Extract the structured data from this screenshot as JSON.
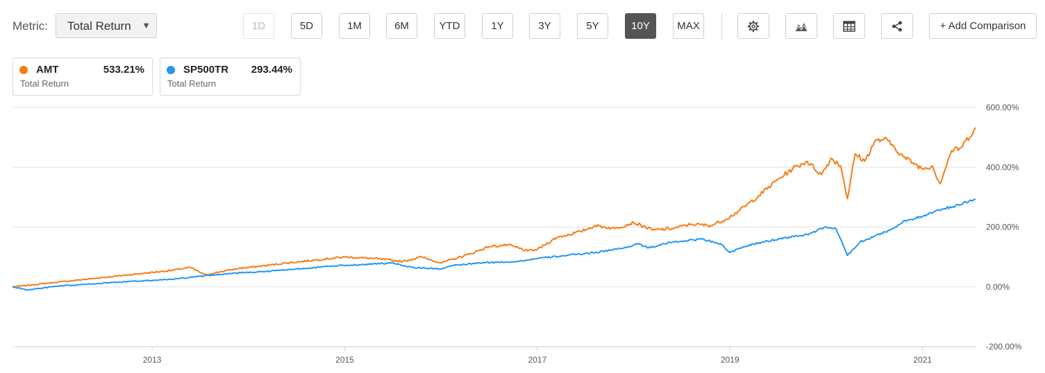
{
  "toolbar": {
    "metric_label": "Metric:",
    "metric_value": "Total Return",
    "ranges": [
      {
        "label": "1D",
        "state": "disabled"
      },
      {
        "label": "5D",
        "state": "normal"
      },
      {
        "label": "1M",
        "state": "normal"
      },
      {
        "label": "6M",
        "state": "normal"
      },
      {
        "label": "YTD",
        "state": "normal"
      },
      {
        "label": "1Y",
        "state": "normal"
      },
      {
        "label": "3Y",
        "state": "normal"
      },
      {
        "label": "5Y",
        "state": "normal"
      },
      {
        "label": "10Y",
        "state": "active"
      },
      {
        "label": "MAX",
        "state": "normal"
      }
    ],
    "icons": [
      "gear-icon",
      "chart-type-icon",
      "table-icon",
      "share-icon"
    ],
    "add_comparison_label": "+ Add Comparison"
  },
  "legend": [
    {
      "symbol": "AMT",
      "value": "533.21%",
      "sub": "Total Return",
      "color": "#f57c14"
    },
    {
      "symbol": "SP500TR",
      "value": "293.44%",
      "sub": "Total Return",
      "color": "#2196f3"
    }
  ],
  "chart_data": {
    "type": "line",
    "xlabel": "",
    "ylabel": "",
    "ylim": [
      -200,
      600
    ],
    "xlim": [
      2011.55,
      2021.55
    ],
    "y_ticks": [
      600,
      400,
      200,
      0,
      -200
    ],
    "y_tick_labels": [
      "600.00%",
      "400.00%",
      "200.00%",
      "0.00%",
      "-200.00%"
    ],
    "x_ticks": [
      2013,
      2015,
      2017,
      2019,
      2021
    ],
    "x_tick_labels": [
      "2013",
      "2015",
      "2017",
      "2019",
      "2021"
    ],
    "grid": true,
    "y_axis_position": "right",
    "series": [
      {
        "name": "AMT",
        "color": "#f57c14",
        "x": [
          2011.55,
          2011.7,
          2012.0,
          2012.3,
          2012.6,
          2012.9,
          2013.2,
          2013.4,
          2013.55,
          2013.7,
          2013.9,
          2014.1,
          2014.4,
          2014.7,
          2015.0,
          2015.3,
          2015.6,
          2015.8,
          2016.0,
          2016.3,
          2016.5,
          2016.7,
          2016.9,
          2017.0,
          2017.2,
          2017.45,
          2017.6,
          2017.8,
          2018.0,
          2018.2,
          2018.4,
          2018.6,
          2018.8,
          2018.95,
          2019.1,
          2019.3,
          2019.5,
          2019.65,
          2019.8,
          2019.95,
          2020.05,
          2020.15,
          2020.22,
          2020.3,
          2020.4,
          2020.5,
          2020.6,
          2020.7,
          2020.8,
          2020.9,
          2021.0,
          2021.1,
          2021.18,
          2021.3,
          2021.4,
          2021.55
        ],
        "values": [
          0,
          5,
          15,
          25,
          35,
          45,
          55,
          65,
          40,
          50,
          62,
          68,
          80,
          90,
          100,
          95,
          85,
          100,
          80,
          110,
          135,
          140,
          120,
          125,
          165,
          185,
          205,
          195,
          215,
          190,
          195,
          210,
          205,
          225,
          255,
          305,
          360,
          395,
          420,
          375,
          430,
          405,
          295,
          445,
          420,
          485,
          495,
          470,
          435,
          415,
          395,
          405,
          345,
          455,
          465,
          533
        ]
      },
      {
        "name": "SP500TR",
        "color": "#2196f3",
        "x": [
          2011.55,
          2011.7,
          2011.85,
          2012.0,
          2012.3,
          2012.6,
          2012.9,
          2013.2,
          2013.5,
          2013.8,
          2014.1,
          2014.5,
          2014.9,
          2015.2,
          2015.5,
          2015.7,
          2016.0,
          2016.1,
          2016.4,
          2016.8,
          2017.0,
          2017.3,
          2017.6,
          2017.9,
          2018.05,
          2018.15,
          2018.4,
          2018.7,
          2018.9,
          2019.0,
          2019.2,
          2019.5,
          2019.8,
          2020.0,
          2020.1,
          2020.22,
          2020.35,
          2020.5,
          2020.7,
          2020.8,
          2021.0,
          2021.2,
          2021.4,
          2021.5,
          2021.55
        ],
        "values": [
          0,
          -10,
          -5,
          2,
          8,
          15,
          20,
          25,
          35,
          45,
          50,
          60,
          70,
          75,
          80,
          65,
          60,
          70,
          80,
          85,
          95,
          105,
          115,
          130,
          145,
          130,
          150,
          160,
          145,
          115,
          140,
          160,
          175,
          200,
          195,
          105,
          150,
          170,
          195,
          220,
          235,
          260,
          275,
          290,
          293
        ]
      }
    ]
  }
}
